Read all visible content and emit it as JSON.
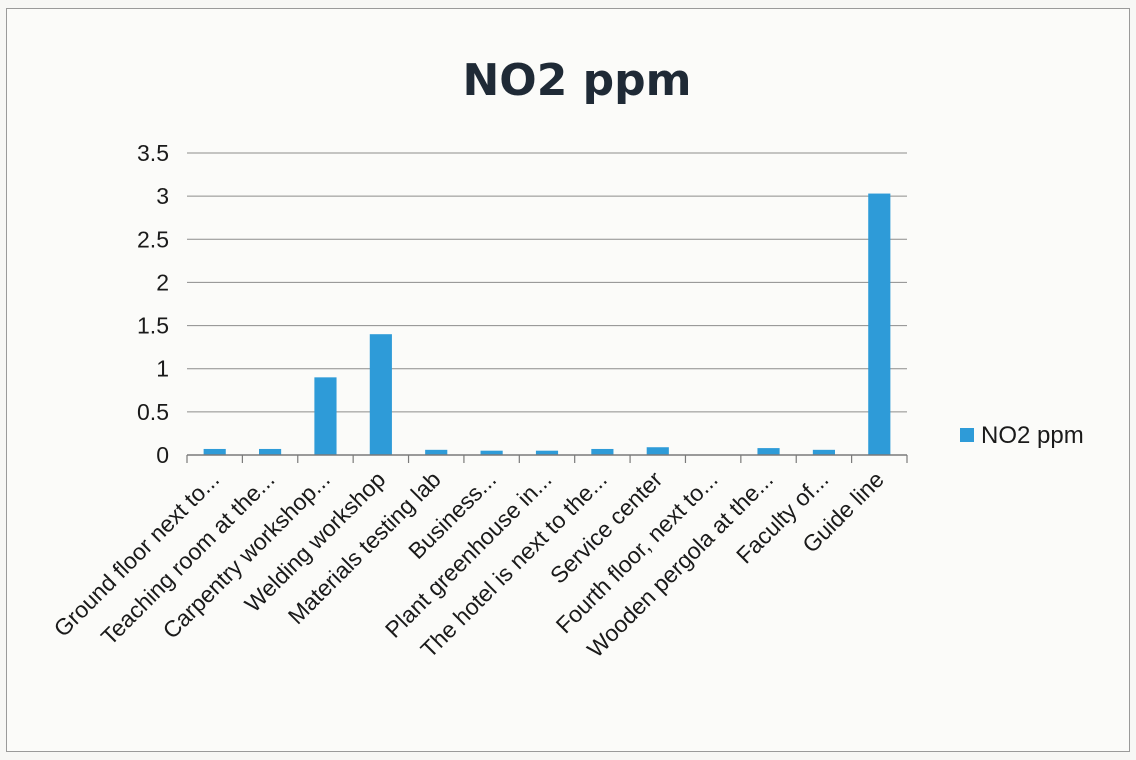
{
  "chart_data": {
    "type": "bar",
    "title": "NO2  ppm",
    "xlabel": "",
    "ylabel": "",
    "ylim": [
      0,
      3.5
    ],
    "yticks": [
      "0",
      "0.5",
      "1",
      "1.5",
      "2",
      "2.5",
      "3",
      "3.5"
    ],
    "grid": true,
    "legend_position": "right",
    "categories": [
      "Ground floor next to...",
      "Teaching room at the...",
      "Carpentry workshop...",
      "Welding workshop",
      "Materials testing lab",
      "Business...",
      "Plant greenhouse in...",
      "The hotel is next to the...",
      "Service center",
      "Fourth floor, next to...",
      "Wooden pergola at the...",
      "Faculty of...",
      "Guide line"
    ],
    "series": [
      {
        "name": "NO2  ppm",
        "color": "#2e9bd8",
        "values": [
          0.07,
          0.07,
          0.9,
          1.4,
          0.06,
          0.05,
          0.05,
          0.07,
          0.09,
          0.0,
          0.08,
          0.06,
          3.03
        ]
      }
    ]
  }
}
